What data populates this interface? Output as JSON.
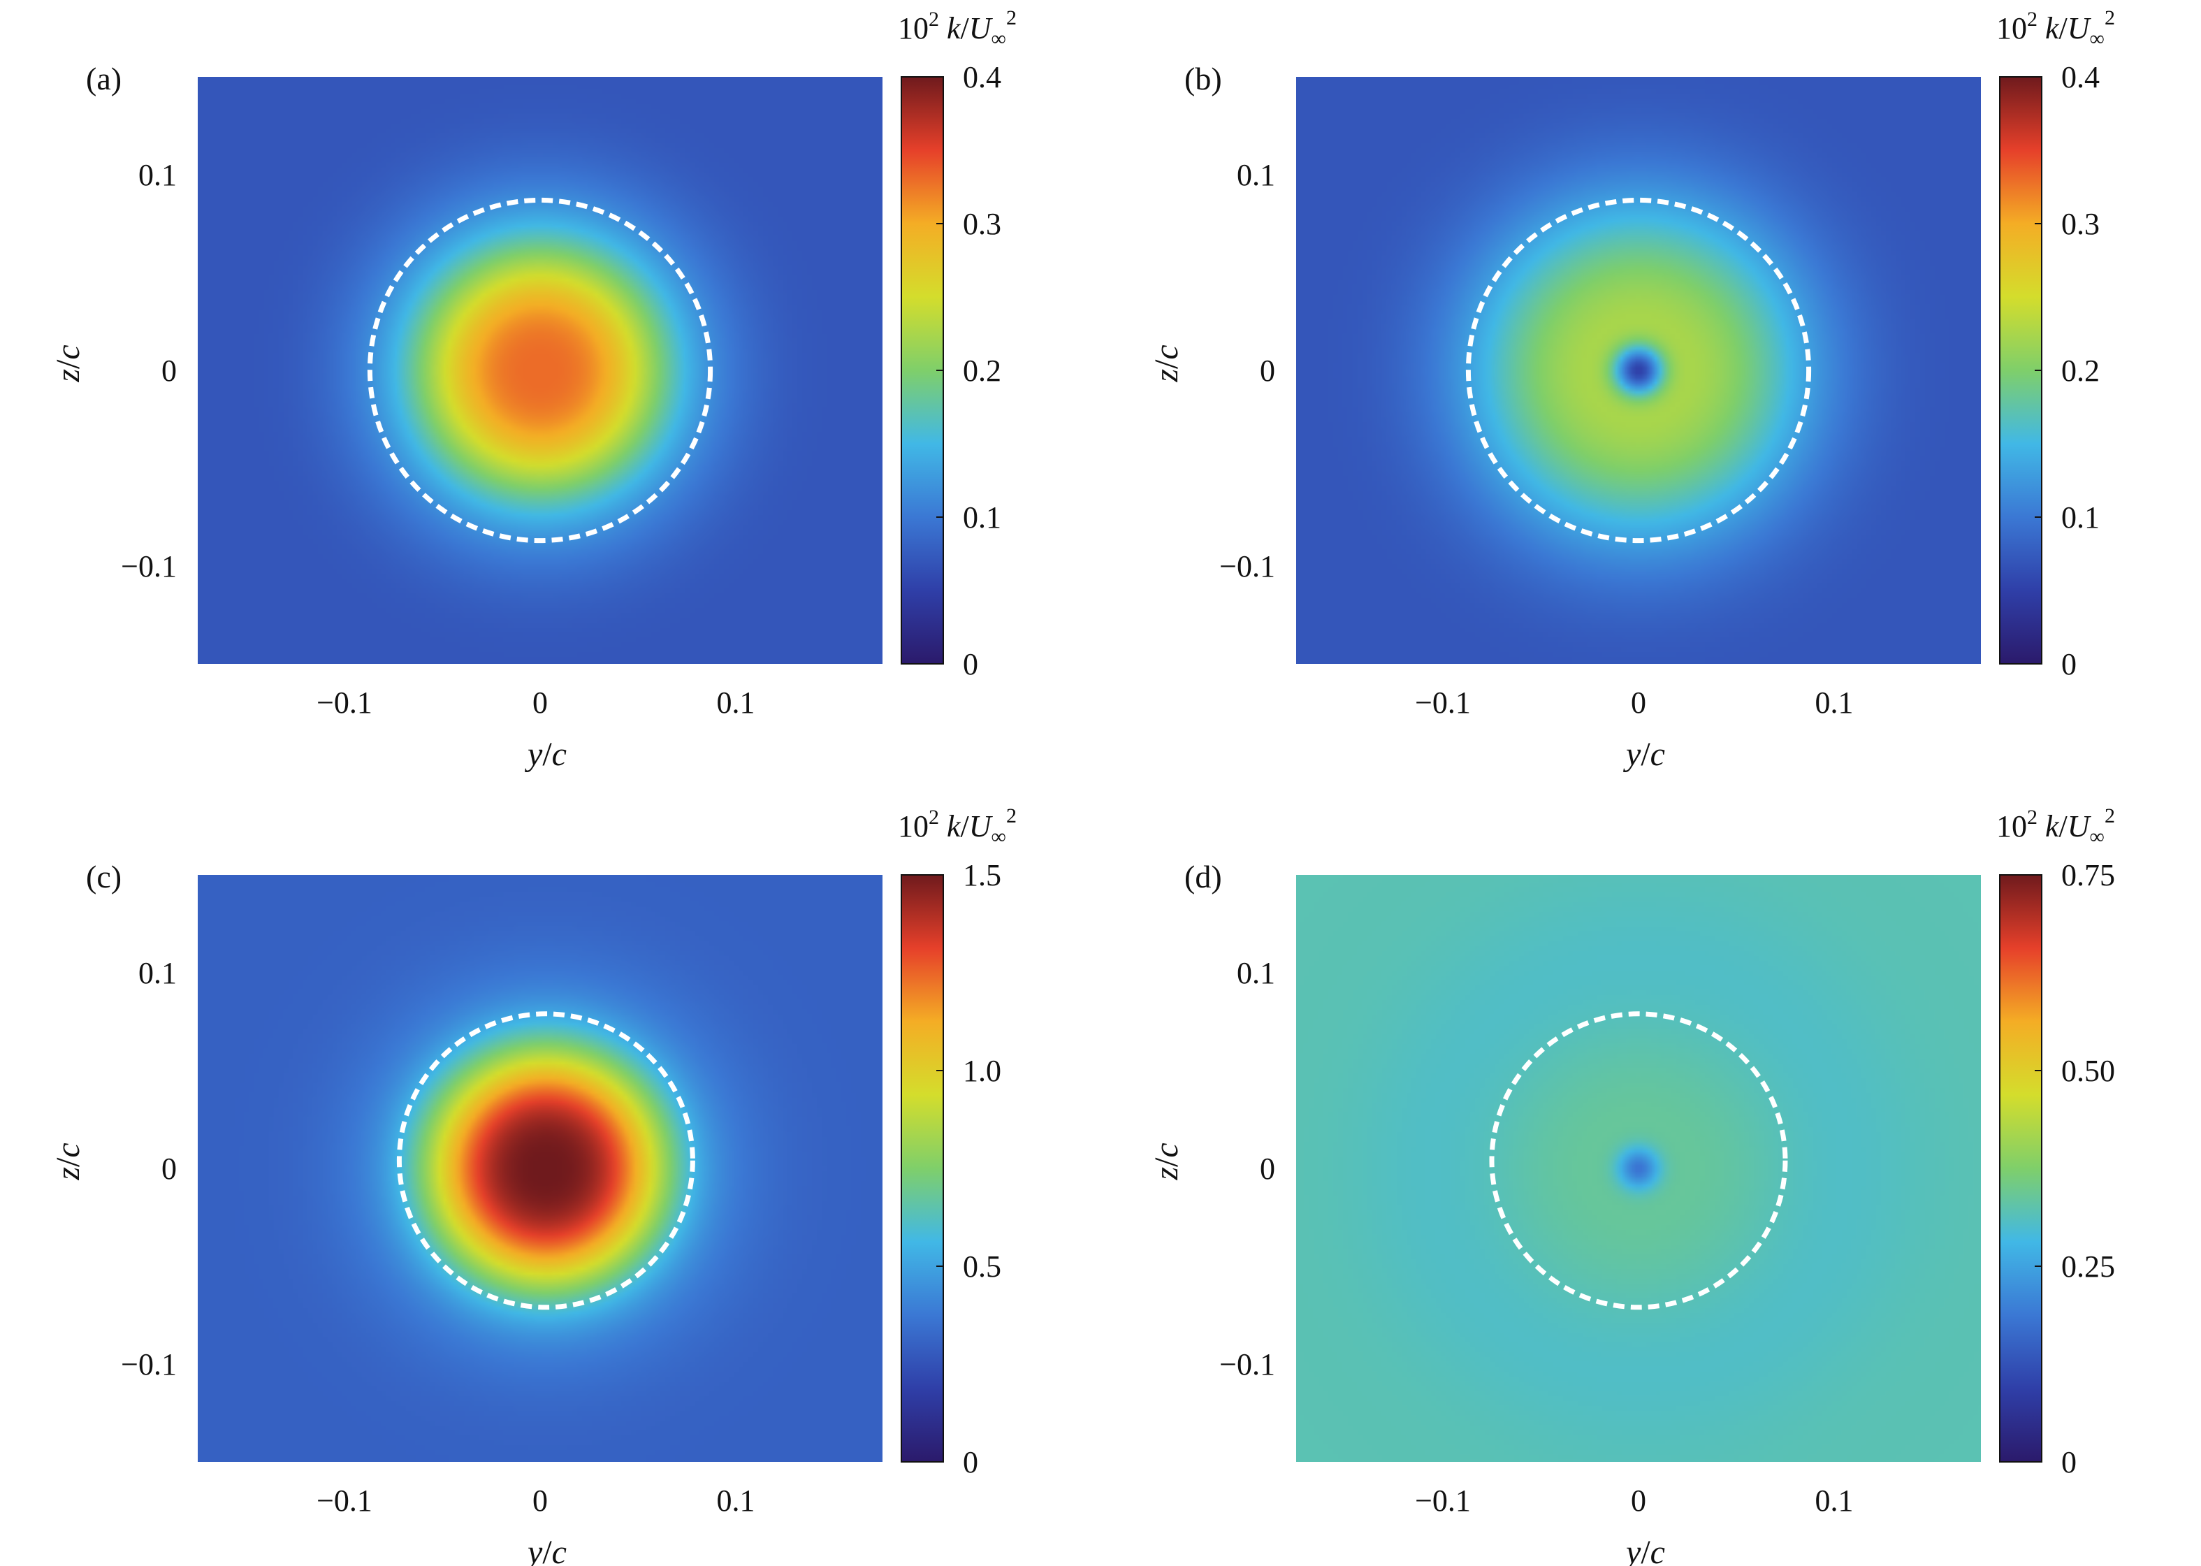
{
  "colormap": [
    "#2b1a6b",
    "#2f3fa8",
    "#3b78d4",
    "#41b8e6",
    "#7fcf6a",
    "#d4dd2c",
    "#f4ad25",
    "#e6402a",
    "#6f1a1d"
  ],
  "chart_data": [
    {
      "type": "heatmap",
      "panel_label": "(a)",
      "xlabel": {
        "var": "y",
        "den": "c"
      },
      "ylabel": {
        "var": "z",
        "den": "c"
      },
      "xlim": [
        -0.175,
        0.175
      ],
      "ylim": [
        -0.15,
        0.15
      ],
      "x_ticks": [
        {
          "v": -0.1,
          "label": "−0.1"
        },
        {
          "v": 0,
          "label": "0"
        },
        {
          "v": 0.1,
          "label": "0.1"
        }
      ],
      "y_ticks": [
        {
          "v": 0.1,
          "label": "0.1"
        },
        {
          "v": 0,
          "label": "0"
        },
        {
          "v": -0.1,
          "label": "−0.1"
        }
      ],
      "colorbar": {
        "title": {
          "base": "10",
          "exp": "2",
          "var": "k",
          "den": "U",
          "sub": "∞",
          "sup": "2"
        },
        "range": [
          0,
          0.4
        ],
        "ticks": [
          {
            "v": 0,
            "label": "0"
          },
          {
            "v": 0.1,
            "label": "0.1"
          },
          {
            "v": 0.2,
            "label": "0.2"
          },
          {
            "v": 0.3,
            "label": "0.3"
          },
          {
            "v": 0.4,
            "label": "0.4"
          }
        ]
      },
      "field": {
        "background": 0.07,
        "core": {
          "center": [
            0.0,
            0.0
          ],
          "peak": 0.33,
          "radius": 0.06
        },
        "ring": {
          "level": 0.14,
          "radius": 0.1
        },
        "vortex_dip": null
      },
      "reference_circle": {
        "center": [
          0.0,
          0.0
        ],
        "radius": 0.087,
        "style": "dashed"
      }
    },
    {
      "type": "heatmap",
      "panel_label": "(b)",
      "xlabel": {
        "var": "y",
        "den": "c"
      },
      "ylabel": {
        "var": "z",
        "den": "c"
      },
      "xlim": [
        -0.175,
        0.175
      ],
      "ylim": [
        -0.15,
        0.15
      ],
      "x_ticks": [
        {
          "v": -0.1,
          "label": "−0.1"
        },
        {
          "v": 0,
          "label": "0"
        },
        {
          "v": 0.1,
          "label": "0.1"
        }
      ],
      "y_ticks": [
        {
          "v": 0.1,
          "label": "0.1"
        },
        {
          "v": 0,
          "label": "0"
        },
        {
          "v": -0.1,
          "label": "−0.1"
        }
      ],
      "colorbar": {
        "title": {
          "base": "10",
          "exp": "2",
          "var": "k",
          "den": "U",
          "sub": "∞",
          "sup": "2"
        },
        "range": [
          0,
          0.4
        ],
        "ticks": [
          {
            "v": 0,
            "label": "0"
          },
          {
            "v": 0.1,
            "label": "0.1"
          },
          {
            "v": 0.2,
            "label": "0.2"
          },
          {
            "v": 0.3,
            "label": "0.3"
          },
          {
            "v": 0.4,
            "label": "0.4"
          }
        ]
      },
      "field": {
        "background": 0.07,
        "core": {
          "center": [
            0.0,
            0.0
          ],
          "peak": 0.23,
          "radius": 0.075
        },
        "ring": {
          "level": 0.13,
          "radius": 0.11
        },
        "vortex_dip": {
          "center": [
            0.0,
            0.0
          ],
          "value": 0.05,
          "radius": 0.012
        }
      },
      "reference_circle": {
        "center": [
          0.0,
          0.0
        ],
        "radius": 0.087,
        "style": "dashed"
      }
    },
    {
      "type": "heatmap",
      "panel_label": "(c)",
      "xlabel": {
        "var": "y",
        "den": "c"
      },
      "ylabel": {
        "var": "z",
        "den": "c"
      },
      "xlim": [
        -0.175,
        0.175
      ],
      "ylim": [
        -0.15,
        0.15
      ],
      "x_ticks": [
        {
          "v": -0.1,
          "label": "−0.1"
        },
        {
          "v": 0,
          "label": "0"
        },
        {
          "v": 0.1,
          "label": "0.1"
        }
      ],
      "y_ticks": [
        {
          "v": 0.1,
          "label": "0.1"
        },
        {
          "v": 0,
          "label": "0"
        },
        {
          "v": -0.1,
          "label": "−0.1"
        }
      ],
      "colorbar": {
        "title": {
          "base": "10",
          "exp": "2",
          "var": "k",
          "den": "U",
          "sub": "∞",
          "sup": "2"
        },
        "range": [
          0,
          1.5
        ],
        "ticks": [
          {
            "v": 0,
            "label": "0"
          },
          {
            "v": 0.5,
            "label": "0.5"
          },
          {
            "v": 1.0,
            "label": "1.0"
          },
          {
            "v": 1.5,
            "label": "1.5"
          }
        ]
      },
      "field": {
        "background": 0.3,
        "core": {
          "center": [
            0.003,
            0.0
          ],
          "peak": 1.5,
          "radius": 0.06
        },
        "ring": {
          "level": 0.45,
          "radius": 0.105
        },
        "vortex_dip": null
      },
      "reference_circle": {
        "center": [
          0.003,
          0.004
        ],
        "radius": 0.075,
        "style": "dashed"
      }
    },
    {
      "type": "heatmap",
      "panel_label": "(d)",
      "xlabel": {
        "var": "y",
        "den": "c"
      },
      "ylabel": {
        "var": "z",
        "den": "c"
      },
      "xlim": [
        -0.175,
        0.175
      ],
      "ylim": [
        -0.15,
        0.15
      ],
      "x_ticks": [
        {
          "v": -0.1,
          "label": "−0.1"
        },
        {
          "v": 0,
          "label": "0"
        },
        {
          "v": 0.1,
          "label": "0.1"
        }
      ],
      "y_ticks": [
        {
          "v": 0.1,
          "label": "0.1"
        },
        {
          "v": 0,
          "label": "0"
        },
        {
          "v": -0.1,
          "label": "−0.1"
        }
      ],
      "colorbar": {
        "title": {
          "base": "10",
          "exp": "2",
          "var": "k",
          "den": "U",
          "sub": "∞",
          "sup": "2"
        },
        "range": [
          0,
          0.75
        ],
        "ticks": [
          {
            "v": 0,
            "label": "0"
          },
          {
            "v": 0.25,
            "label": "0.25"
          },
          {
            "v": 0.5,
            "label": "0.50"
          },
          {
            "v": 0.75,
            "label": "0.75"
          }
        ]
      },
      "field": {
        "background": 0.32,
        "core": {
          "center": [
            0.0,
            0.0
          ],
          "peak": 0.34,
          "radius": 0.08
        },
        "ring": {
          "level": 0.29,
          "radius": 0.13
        },
        "vortex_dip": {
          "center": [
            0.0,
            0.0
          ],
          "value": 0.18,
          "radius": 0.01
        }
      },
      "reference_circle": {
        "center": [
          0.0,
          0.004
        ],
        "radius": 0.075,
        "style": "dashed"
      }
    }
  ]
}
